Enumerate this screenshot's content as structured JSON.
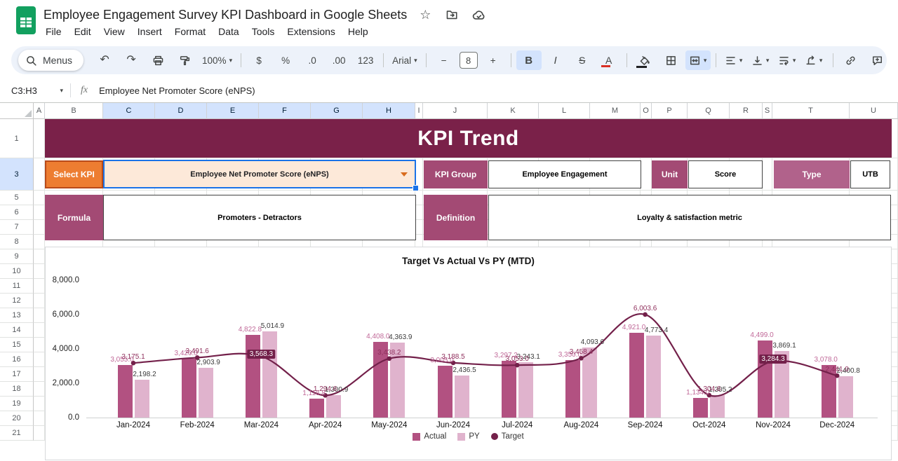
{
  "titlebar": {
    "doc_title": "Employee Engagement Survey KPI Dashboard in Google Sheets",
    "menus": [
      "File",
      "Edit",
      "View",
      "Insert",
      "Format",
      "Data",
      "Tools",
      "Extensions",
      "Help"
    ]
  },
  "toolbar": {
    "items": [
      {
        "name": "menus-pill",
        "icon": "search",
        "label": "Menus",
        "pill": true
      },
      {
        "name": "undo-button",
        "glyph": "↶"
      },
      {
        "name": "redo-button",
        "glyph": "↷"
      },
      {
        "name": "print-button",
        "icon": "print"
      },
      {
        "name": "paint-format-button",
        "icon": "paint"
      },
      {
        "name": "zoom-select",
        "label": "100%",
        "caret": true
      },
      {
        "type": "divider"
      },
      {
        "name": "currency-format-button",
        "label": "$"
      },
      {
        "name": "percent-format-button",
        "label": "%"
      },
      {
        "name": "decrease-decimals-button",
        "label": ".0"
      },
      {
        "name": "increase-decimals-button",
        "label": ".00"
      },
      {
        "name": "more-formats-button",
        "label": "123"
      },
      {
        "type": "divider"
      },
      {
        "name": "font-select",
        "label": "Arial",
        "caret": true
      },
      {
        "type": "divider"
      },
      {
        "name": "decrease-font-size-button",
        "label": "−"
      },
      {
        "name": "font-size-input",
        "label": "8",
        "boxed": true
      },
      {
        "name": "increase-font-size-button",
        "label": "+"
      },
      {
        "type": "divider"
      },
      {
        "name": "bold-button",
        "label": "B",
        "style": "bold",
        "active": true
      },
      {
        "name": "italic-button",
        "label": "I",
        "style": "italic"
      },
      {
        "name": "strikethrough-button",
        "label": "S",
        "style": "strike"
      },
      {
        "name": "text-color-button",
        "label": "A",
        "style": "redbar"
      },
      {
        "type": "divider"
      },
      {
        "name": "fill-color-button",
        "icon": "fill",
        "style": "blackbar"
      },
      {
        "name": "borders-button",
        "icon": "borders"
      },
      {
        "name": "merge-cells-button",
        "icon": "merge",
        "active": true,
        "caret": true
      },
      {
        "type": "divider"
      },
      {
        "name": "horizontal-align-button",
        "icon": "alignLeft",
        "caret": true
      },
      {
        "name": "vertical-align-button",
        "icon": "vertAlign",
        "caret": true
      },
      {
        "name": "text-wrap-button",
        "icon": "wrap",
        "caret": true
      },
      {
        "name": "text-rotation-button",
        "icon": "rotate",
        "caret": true
      },
      {
        "type": "spacer"
      },
      {
        "type": "divider"
      },
      {
        "name": "insert-link-button",
        "icon": "link"
      },
      {
        "name": "insert-comment-button",
        "icon": "comment"
      },
      {
        "name": "insert-chart-button",
        "icon": "chart"
      }
    ]
  },
  "formula_bar": {
    "cell_ref": "C3:H3",
    "fx_label": "fx",
    "value": "Employee Net Promoter Score (eNPS)"
  },
  "grid": {
    "columns": [
      {
        "label": "A",
        "w": 16
      },
      {
        "label": "B",
        "w": 83
      },
      {
        "label": "C",
        "w": 74
      },
      {
        "label": "D",
        "w": 74
      },
      {
        "label": "E",
        "w": 74
      },
      {
        "label": "F",
        "w": 74
      },
      {
        "label": "G",
        "w": 74
      },
      {
        "label": "H",
        "w": 75
      },
      {
        "label": "I",
        "w": 11
      },
      {
        "label": "J",
        "w": 92
      },
      {
        "label": "K",
        "w": 73
      },
      {
        "label": "L",
        "w": 73
      },
      {
        "label": "M",
        "w": 72
      },
      {
        "label": "O",
        "w": 16
      },
      {
        "label": "P",
        "w": 51
      },
      {
        "label": "Q",
        "w": 60
      },
      {
        "label": "R",
        "w": 47
      },
      {
        "label": "S",
        "w": 14
      },
      {
        "label": "T",
        "w": 110
      },
      {
        "label": "U",
        "w": 69
      }
    ],
    "selected_columns": [
      "C",
      "D",
      "E",
      "F",
      "G",
      "H"
    ],
    "rows": [
      {
        "n": "1",
        "h": 56
      },
      {
        "n": "3",
        "h": 46
      },
      {
        "n": "5",
        "h": 21
      },
      {
        "n": "6",
        "h": 21
      },
      {
        "n": "7",
        "h": 21
      },
      {
        "n": "8",
        "h": 21
      },
      {
        "n": "9",
        "h": 21
      },
      {
        "n": "10",
        "h": 21
      },
      {
        "n": "11",
        "h": 21
      },
      {
        "n": "12",
        "h": 21
      },
      {
        "n": "13",
        "h": 21
      },
      {
        "n": "14",
        "h": 21
      },
      {
        "n": "15",
        "h": 21
      },
      {
        "n": "16",
        "h": 21
      },
      {
        "n": "17",
        "h": 21
      },
      {
        "n": "18",
        "h": 21
      },
      {
        "n": "19",
        "h": 21
      },
      {
        "n": "20",
        "h": 21
      },
      {
        "n": "21",
        "h": 21
      }
    ],
    "selected_row": "3"
  },
  "sheet": {
    "banner_title": "KPI Trend",
    "select_kpi_label": "Select KPI",
    "kpi_dropdown_value": "Employee Net Promoter Score (eNPS)",
    "kpi_group_label": "KPI Group",
    "kpi_group_value": "Employee Engagement",
    "unit_label": "Unit",
    "unit_value": "Score",
    "type_label": "Type",
    "type_value": "UTB",
    "formula_label": "Formula",
    "formula_value": "Promoters - Detractors",
    "definition_label": "Definition",
    "definition_value": "Loyalty & satisfaction metric"
  },
  "colors": {
    "banner": "#7a2149",
    "label_cell": "#a34a74",
    "type_cell": "#b1628b",
    "select_kpi": "#ed7d31",
    "dropdown_bg": "#fde9d9",
    "selection_blue": "#1a73e8",
    "actual_bar": "#b25181",
    "py_bar": "#e0b3cd",
    "target_line": "#73204a"
  },
  "chart_data": {
    "type": "bar",
    "title": "Target Vs Actual Vs PY (MTD)",
    "categories": [
      "Jan-2024",
      "Feb-2024",
      "Mar-2024",
      "Apr-2024",
      "May-2024",
      "Jun-2024",
      "Jul-2024",
      "Aug-2024",
      "Sep-2024",
      "Oct-2024",
      "Nov-2024",
      "Dec-2024"
    ],
    "series": [
      {
        "name": "Actual",
        "type": "bar",
        "color": "#b25181",
        "values": [
          3055.0,
          3420.0,
          4822.8,
          1116.8,
          4408.0,
          3005.0,
          3297.2,
          3350.0,
          4921.0,
          1134.0,
          4499.0,
          3078.0
        ]
      },
      {
        "name": "PY",
        "type": "bar",
        "color": "#e0b3cd",
        "values": [
          2198.2,
          2903.9,
          5014.9,
          1300.9,
          4363.9,
          2436.5,
          3243.1,
          4093.6,
          4773.4,
          1305.2,
          3869.1,
          2400.8
        ]
      },
      {
        "name": "Target",
        "type": "line",
        "color": "#73204a",
        "values": [
          3175.1,
          3491.6,
          3568.3,
          1294.6,
          3438.2,
          3188.5,
          3053.0,
          3458.4,
          6003.6,
          1304.6,
          3284.3,
          2441.0
        ]
      }
    ],
    "ylim": [
      0,
      8000
    ],
    "yticks": [
      8000,
      6000,
      4000,
      2000,
      0
    ],
    "label_colors": {
      "actual": "#c06898",
      "py": "#3a3a3a",
      "target": "#8f2f5c"
    },
    "boxed_target_labels": [
      2,
      10
    ],
    "legend_position": "bottom",
    "grid": "off"
  }
}
